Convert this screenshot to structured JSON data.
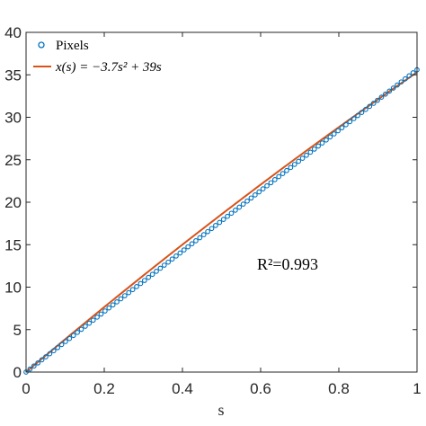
{
  "chart_data": {
    "type": "scatter",
    "title": "",
    "xlabel": "s",
    "ylabel": "",
    "xlim": [
      0,
      1
    ],
    "ylim": [
      0,
      40
    ],
    "xticks": [
      0,
      0.2,
      0.4,
      0.6,
      0.8,
      1
    ],
    "xtick_labels": [
      "0",
      "0.2",
      "0.4",
      "0.6",
      "0.8",
      "1"
    ],
    "yticks": [
      0,
      5,
      10,
      15,
      20,
      25,
      30,
      35,
      40
    ],
    "ytick_labels": [
      "0",
      "5",
      "10",
      "15",
      "20",
      "25",
      "30",
      "35",
      "40"
    ],
    "grid": false,
    "legend_position": "top-left",
    "series": [
      {
        "name": "Pixels",
        "kind": "markers",
        "marker": "open-circle",
        "color": "#0072BD",
        "x_start": 0,
        "x_end": 1,
        "n_points": 100,
        "y_at_x0": 0,
        "y_at_x1": 35.6
      },
      {
        "name": "x(s) = −3.7s² + 39s",
        "kind": "line",
        "color": "#D95319",
        "coefficients": {
          "a": -3.7,
          "b": 39,
          "c": 0
        }
      }
    ],
    "annotation": "R²=0.993"
  },
  "legend": {
    "label_pixels": "Pixels",
    "label_fit": "x(s) = −3.7s² + 39s"
  }
}
